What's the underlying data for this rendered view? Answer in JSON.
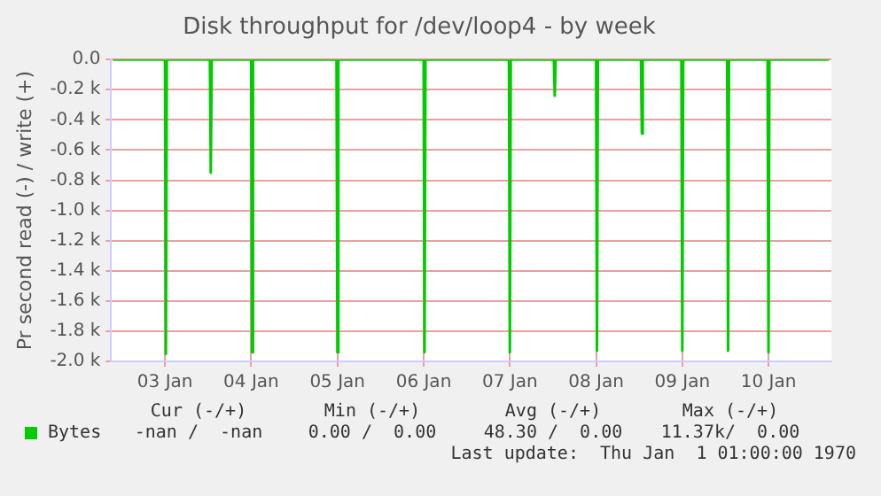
{
  "chart_data": {
    "type": "line",
    "title": "Disk throughput for /dev/loop4 - by week",
    "ylabel": "Pr second read (-) / write (+)",
    "xlim": [
      "--01-02T09:00",
      "--01-10T17:30"
    ],
    "ylim": [
      -2000,
      0
    ],
    "xticks": [
      {
        "value": "--01-03",
        "label": "03 Jan"
      },
      {
        "value": "--01-04",
        "label": "04 Jan"
      },
      {
        "value": "--01-05",
        "label": "05 Jan"
      },
      {
        "value": "--01-06",
        "label": "06 Jan"
      },
      {
        "value": "--01-07",
        "label": "07 Jan"
      },
      {
        "value": "--01-08",
        "label": "08 Jan"
      },
      {
        "value": "--01-09",
        "label": "09 Jan"
      },
      {
        "value": "--01-10",
        "label": "10 Jan"
      }
    ],
    "yticks": [
      {
        "value": -2000,
        "label": "-2.0 k"
      },
      {
        "value": -1800,
        "label": "-1.8 k"
      },
      {
        "value": -1600,
        "label": "-1.6 k"
      },
      {
        "value": -1400,
        "label": "-1.4 k"
      },
      {
        "value": -1200,
        "label": "-1.2 k"
      },
      {
        "value": -1000,
        "label": "-1.0 k"
      },
      {
        "value": -800,
        "label": "-0.8 k"
      },
      {
        "value": -600,
        "label": "-0.6 k"
      },
      {
        "value": -400,
        "label": "-0.4 k"
      },
      {
        "value": -200,
        "label": "-0.2 k"
      },
      {
        "value": 0,
        "label": "0.0"
      }
    ],
    "grid": true,
    "legend": "bottom left",
    "series": [
      {
        "name": "Bytes",
        "color": "#00cc00",
        "x": [
          "--01-02T09:36",
          "--01-03T00:00",
          "--01-03T00:15",
          "--01-03T00:30",
          "--01-03T12:30",
          "--01-03T12:45",
          "--01-03T13:00",
          "--01-04T00:00",
          "--01-04T00:15",
          "--01-04T00:30",
          "--01-04T23:45",
          "--01-05T00:00",
          "--01-05T00:15",
          "--01-06T00:00",
          "--01-06T00:15",
          "--01-06T00:30",
          "--01-06T23:45",
          "--01-07T00:00",
          "--01-07T00:15",
          "--01-07T12:15",
          "--01-07T12:30",
          "--01-07T12:45",
          "--01-08T00:00",
          "--01-08T00:15",
          "--01-08T00:30",
          "--01-08T12:30",
          "--01-08T12:45",
          "--01-08T13:00",
          "--01-08T23:45",
          "--01-09T00:00",
          "--01-09T00:15",
          "--01-09T12:30",
          "--01-09T12:45",
          "--01-09T13:00",
          "--01-09T23:45",
          "--01-10T00:00",
          "--01-10T00:15",
          "--01-10T16:48"
        ],
        "values": [
          0,
          0,
          -1950,
          0,
          0,
          -750,
          0,
          0,
          -1940,
          0,
          0,
          -1940,
          0,
          0,
          -1940,
          0,
          0,
          -1940,
          0,
          0,
          -240,
          0,
          0,
          -1930,
          0,
          0,
          -490,
          0,
          0,
          -1930,
          0,
          0,
          -1930,
          0,
          0,
          -1940,
          0,
          0
        ]
      }
    ],
    "annotations": [
      "Cur (-/+)",
      "Min (-/+)",
      "Avg (-/+)",
      "Max (-/+)",
      "-nan /  -nan",
      "0.00 /  0.00",
      "48.30 /  0.00",
      "11.37k/  0.00",
      "Last update:  Thu Jan  1 01:00:00 1970"
    ]
  }
}
